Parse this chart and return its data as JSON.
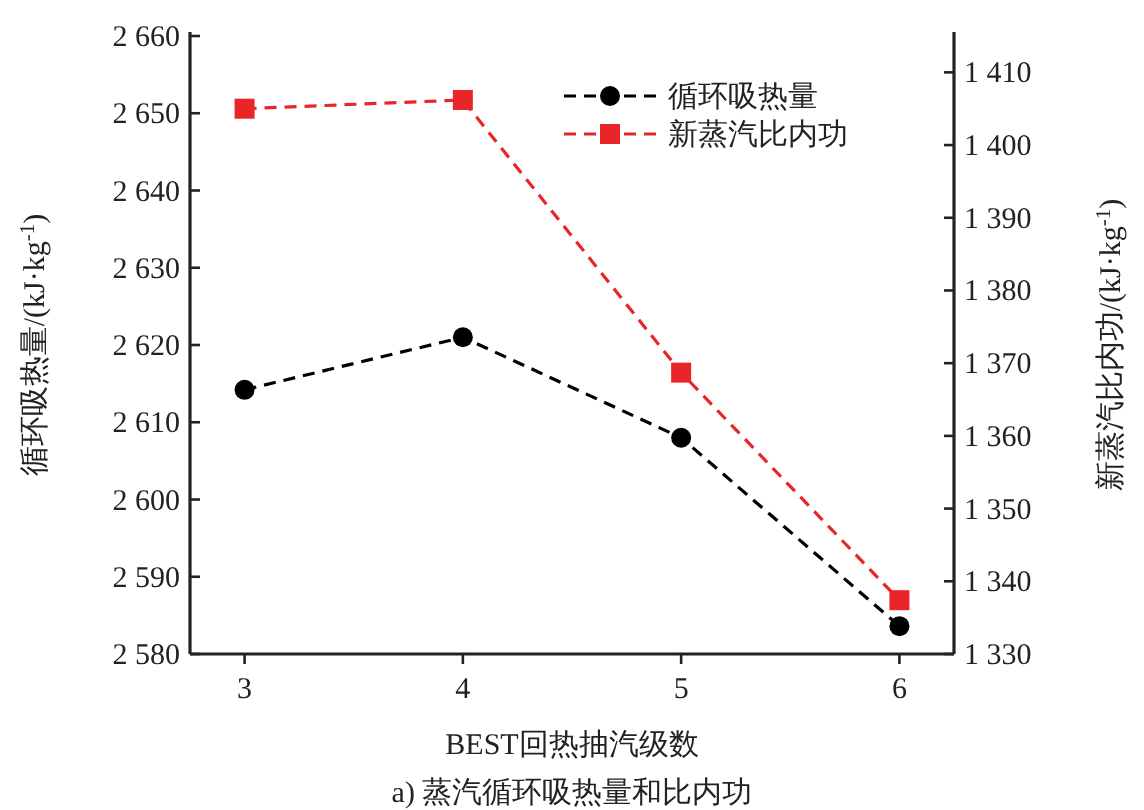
{
  "chart_data": {
    "type": "line",
    "title": "a) 蒸汽循环吸热量和比内功",
    "xlabel": "BEST回热抽汽级数",
    "ylabel": "循环吸热量/(kJ·kg$^{-1}$)",
    "y2label": "新蒸汽比内功/(kJ·kg$^{-1}$)",
    "x": [
      3,
      4,
      5,
      6
    ],
    "series": [
      {
        "name": "循环吸热量",
        "color": "#000000",
        "marker": "circle",
        "line_style": "dashed",
        "values": [
          2614.2,
          2621,
          2608,
          2583.6
        ]
      },
      {
        "name": "新蒸汽比内功",
        "color": "#e8262a",
        "marker": "square",
        "line_style": "dashed",
        "axis": "y2",
        "values": [
          1405,
          1406.2,
          1368.7,
          1337.4
        ]
      }
    ],
    "xlim": [
      2.75,
      6.25
    ],
    "xticks": [
      3,
      4,
      5,
      6
    ],
    "ylim": [
      2580,
      2660
    ],
    "yticks": [
      {
        "value": 2580,
        "label": "2 580"
      },
      {
        "value": 2590,
        "label": "2 590"
      },
      {
        "value": 2600,
        "label": "2 600"
      },
      {
        "value": 2610,
        "label": "2 610"
      },
      {
        "value": 2620,
        "label": "2 620"
      },
      {
        "value": 2630,
        "label": "2 630"
      },
      {
        "value": 2640,
        "label": "2 640"
      },
      {
        "value": 2650,
        "label": "2 650"
      },
      {
        "value": 2660,
        "label": "2 660"
      }
    ],
    "y2lim": [
      1330,
      1415
    ],
    "y2ticks": [
      {
        "value": 1330,
        "label": "1 330"
      },
      {
        "value": 1340,
        "label": "1 340"
      },
      {
        "value": 1350,
        "label": "1 350"
      },
      {
        "value": 1360,
        "label": "1 360"
      },
      {
        "value": 1370,
        "label": "1 370"
      },
      {
        "value": 1380,
        "label": "1 380"
      },
      {
        "value": 1390,
        "label": "1 390"
      },
      {
        "value": 1400,
        "label": "1 400"
      },
      {
        "value": 1410,
        "label": "1 410"
      }
    ],
    "grid": false,
    "legend": "top right"
  }
}
